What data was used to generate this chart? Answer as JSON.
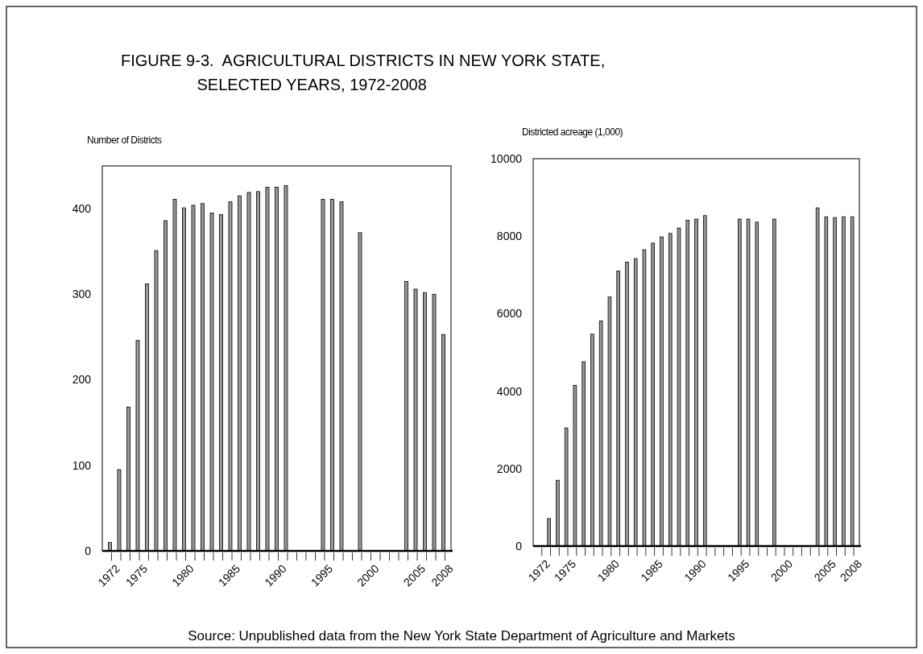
{
  "chart_data": [
    {
      "type": "bar",
      "title": "FIGURE 9-3.  AGRICULTURAL DISTRICTS IN NEW YORK STATE,\n                 SELECTED YEARS, 1972-2008",
      "ylabel": "Number of Districts",
      "categories": [
        "1972",
        null,
        null,
        "1975",
        null,
        null,
        null,
        null,
        "1980",
        null,
        null,
        null,
        null,
        "1985",
        null,
        null,
        null,
        null,
        "1990",
        null,
        null,
        null,
        null,
        "1995",
        null,
        null,
        null,
        null,
        "2000",
        null,
        null,
        null,
        null,
        "2005",
        null,
        null,
        "2008"
      ],
      "values": [
        10,
        95,
        168,
        246,
        312,
        351,
        386,
        411,
        401,
        404,
        406,
        395,
        393,
        408,
        415,
        419,
        420,
        425,
        425,
        427,
        null,
        null,
        null,
        411,
        411,
        408,
        null,
        372,
        null,
        null,
        null,
        null,
        315,
        306,
        302,
        300,
        253
      ],
      "color": "#999999",
      "ylim": [
        0,
        450
      ],
      "yticks": [
        0,
        100,
        200,
        300,
        400
      ],
      "grid": false
    },
    {
      "type": "bar",
      "ylabel": "Districted acreage (1,000)",
      "categories": [
        "1972",
        null,
        null,
        "1975",
        null,
        null,
        null,
        null,
        "1980",
        null,
        null,
        null,
        null,
        "1985",
        null,
        null,
        null,
        null,
        "1990",
        null,
        null,
        null,
        null,
        "1995",
        null,
        null,
        null,
        null,
        "2000",
        null,
        null,
        null,
        null,
        "2005",
        null,
        null,
        "2008"
      ],
      "values": [
        null,
        710,
        1700,
        3050,
        4150,
        4760,
        5470,
        5810,
        6430,
        7100,
        7330,
        7420,
        7650,
        7820,
        7980,
        8070,
        8210,
        8410,
        8440,
        8530,
        null,
        null,
        null,
        8440,
        8440,
        8360,
        null,
        8440,
        null,
        null,
        null,
        null,
        8730,
        8500,
        8480,
        8500,
        8500
      ],
      "color": "#999999",
      "ylim": [
        0,
        10000
      ],
      "yticks": [
        0,
        2000,
        4000,
        6000,
        8000,
        10000
      ],
      "grid": false,
      "annotations": [
        "Source:  Unpublished data from the New York State Department of Agriculture and Markets"
      ]
    }
  ]
}
